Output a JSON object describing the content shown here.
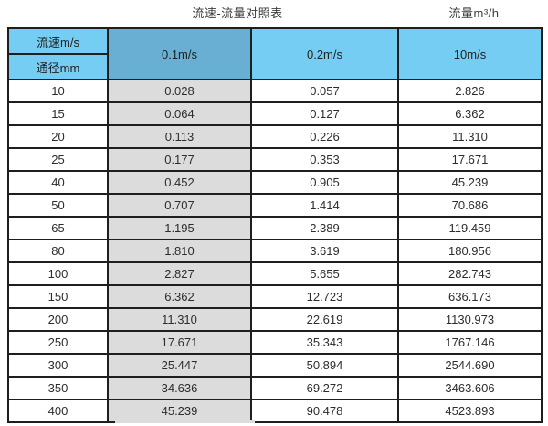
{
  "page": {
    "title": "流速-流量对照表",
    "unit_label": "流量m³/h"
  },
  "colors": {
    "header_blue": "#76cdf3",
    "highlighted_header_blue": "#69aed3",
    "highlighted_column_gray": "#dcdcdc",
    "grid_line": "#1e1e1e",
    "background": "#ffffff"
  },
  "chart_data": {
    "type": "table",
    "title": "流速-流量对照表",
    "unit_label": "流量m³/h",
    "header": {
      "row_label_top": "流速m/s",
      "row_label_bottom": "通径mm",
      "velocity_columns": [
        "0.1m/s",
        "0.2m/s",
        "10m/s"
      ]
    },
    "highlighted_column": "0.1m/s",
    "rows": [
      [
        "10",
        "0.028",
        "0.057",
        "2.826"
      ],
      [
        "15",
        "0.064",
        "0.127",
        "6.362"
      ],
      [
        "20",
        "0.113",
        "0.226",
        "11.310"
      ],
      [
        "25",
        "0.177",
        "0.353",
        "17.671"
      ],
      [
        "40",
        "0.452",
        "0.905",
        "45.239"
      ],
      [
        "50",
        "0.707",
        "1.414",
        "70.686"
      ],
      [
        "65",
        "1.195",
        "2.389",
        "119.459"
      ],
      [
        "80",
        "1.810",
        "3.619",
        "180.956"
      ],
      [
        "100",
        "2.827",
        "5.655",
        "282.743"
      ],
      [
        "150",
        "6.362",
        "12.723",
        "636.173"
      ],
      [
        "200",
        "11.310",
        "22.619",
        "1130.973"
      ],
      [
        "250",
        "17.671",
        "35.343",
        "1767.146"
      ],
      [
        "300",
        "25.447",
        "50.894",
        "2544.690"
      ],
      [
        "350",
        "34.636",
        "69.272",
        "3463.606"
      ],
      [
        "400",
        "45.239",
        "90.478",
        "4523.893"
      ]
    ]
  }
}
